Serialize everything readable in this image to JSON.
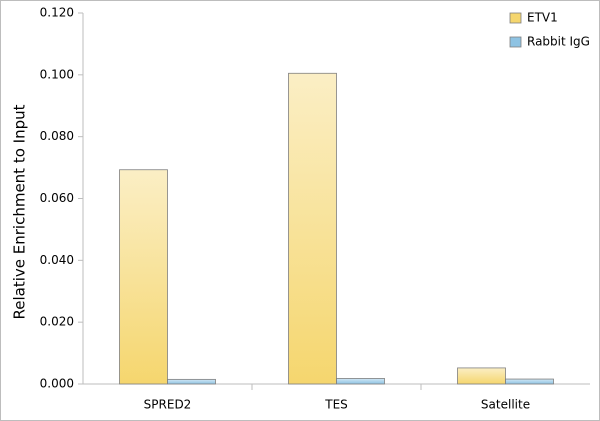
{
  "chart_data": {
    "type": "bar",
    "y_label": "Relative Enrichment to Input",
    "categories": [
      "SPRED2",
      "TES",
      "Satellite"
    ],
    "series": [
      {
        "name": "ETV1",
        "color": "#f5d66e",
        "values": [
          0.0693,
          0.1005,
          0.0052
        ]
      },
      {
        "name": "Rabbit IgG",
        "color": "#8ec3e3",
        "values": [
          0.0015,
          0.0018,
          0.0016
        ]
      }
    ],
    "ylim": [
      0,
      0.12
    ],
    "yticks": [
      {
        "value": 0,
        "label": "0.000"
      },
      {
        "value": 0.02,
        "label": "0.020"
      },
      {
        "value": 0.04,
        "label": "0.040"
      },
      {
        "value": 0.06,
        "label": "0.060"
      },
      {
        "value": 0.08,
        "label": "0.080"
      },
      {
        "value": 0.1,
        "label": "0.100"
      },
      {
        "value": 0.12,
        "label": "0.120"
      }
    ],
    "grid": false,
    "legend": "top-right"
  }
}
